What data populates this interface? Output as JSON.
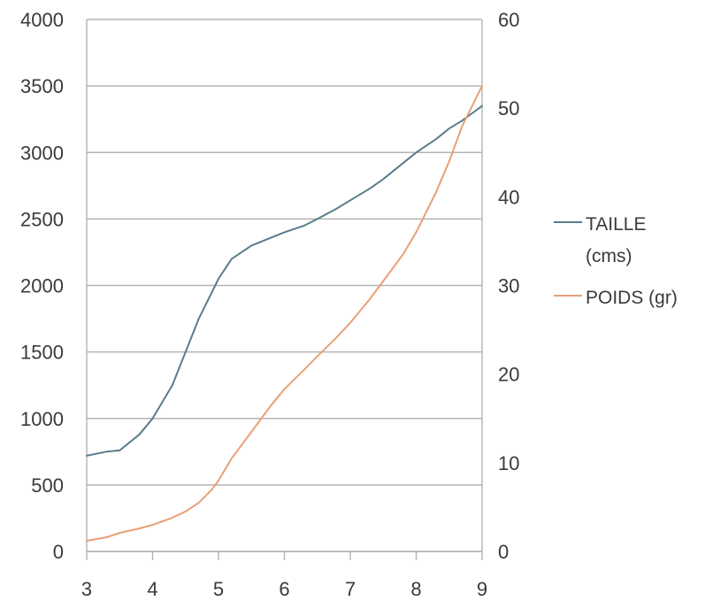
{
  "chart_data": {
    "type": "line",
    "x": [
      3,
      3.3,
      3.5,
      3.8,
      4,
      4.3,
      4.5,
      4.7,
      4.9,
      5,
      5.2,
      5.5,
      5.8,
      6,
      6.3,
      6.5,
      6.8,
      7,
      7.3,
      7.5,
      7.8,
      8,
      8.3,
      8.5,
      8.7,
      9
    ],
    "series": [
      {
        "name": "TAILLE (cms)",
        "axis": "left",
        "color": "#5a7c8c",
        "values": [
          720,
          750,
          760,
          880,
          1000,
          1250,
          1500,
          1750,
          1950,
          2050,
          2200,
          2300,
          2360,
          2400,
          2450,
          2500,
          2580,
          2640,
          2730,
          2800,
          2920,
          3000,
          3100,
          3180,
          3240,
          3350
        ]
      },
      {
        "name": "POIDS (gr)",
        "axis": "right",
        "color": "#e8a078",
        "values": [
          1.2,
          1.6,
          2.1,
          2.6,
          3.0,
          3.8,
          4.5,
          5.5,
          7.0,
          8.0,
          10.5,
          13.5,
          16.5,
          18.3,
          20.5,
          22.0,
          24.2,
          25.8,
          28.5,
          30.5,
          33.5,
          36.0,
          40.5,
          44.0,
          48.0,
          52.5
        ]
      }
    ],
    "y_left": {
      "lim": [
        0,
        4000
      ],
      "ticks": [
        "0",
        "500",
        "1000",
        "1500",
        "2000",
        "2500",
        "3000",
        "3500",
        "4000"
      ]
    },
    "y_right": {
      "lim": [
        0,
        60
      ],
      "ticks": [
        "0",
        "10",
        "20",
        "30",
        "40",
        "50",
        "60"
      ]
    },
    "x_axis": {
      "lim": [
        3,
        9
      ],
      "ticks": [
        "3",
        "4",
        "5",
        "6",
        "7",
        "8",
        "9"
      ]
    },
    "grid": true,
    "legend": {
      "position": "right",
      "lines": [
        {
          "series": 0,
          "text": [
            "TAILLE",
            "(cms)"
          ]
        },
        {
          "series": 1,
          "text": [
            "POIDS (gr)"
          ]
        }
      ]
    }
  }
}
